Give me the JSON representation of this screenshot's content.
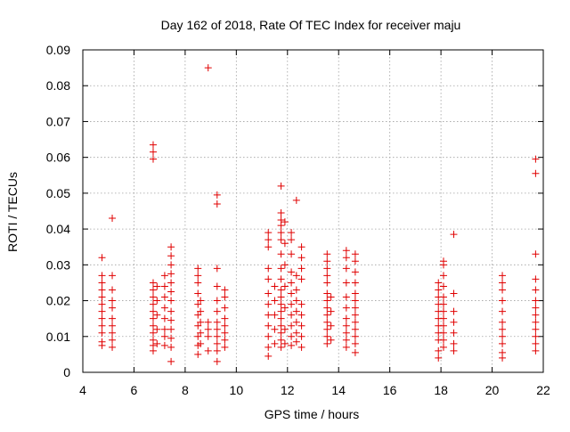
{
  "chart_data": {
    "type": "scatter",
    "title": "Day 162 of 2018, Rate Of TEC Index for receiver maju",
    "xlabel": "GPS time / hours",
    "ylabel": "ROTI / TECUs",
    "xlim": [
      4,
      22
    ],
    "ylim": [
      0,
      0.09
    ],
    "xticks": [
      4,
      6,
      8,
      10,
      12,
      14,
      16,
      18,
      20,
      22
    ],
    "xtick_labels": [
      "4",
      "6",
      "8",
      "10",
      "12",
      "14",
      "16",
      "18",
      "20",
      "22"
    ],
    "yticks": [
      0,
      0.01,
      0.02,
      0.03,
      0.04,
      0.05,
      0.06,
      0.07,
      0.08,
      0.09
    ],
    "ytick_labels": [
      "0",
      "0.01",
      "0.02",
      "0.03",
      "0.04",
      "0.05",
      "0.06",
      "0.07",
      "0.08",
      "0.09"
    ],
    "grid": true,
    "marker": "+",
    "color": "#e00000",
    "series": [
      {
        "name": "ROTI",
        "points": [
          [
            4.75,
            0.032
          ],
          [
            4.75,
            0.027
          ],
          [
            4.75,
            0.025
          ],
          [
            4.75,
            0.023
          ],
          [
            4.75,
            0.021
          ],
          [
            4.75,
            0.019
          ],
          [
            4.75,
            0.017
          ],
          [
            4.75,
            0.015
          ],
          [
            4.75,
            0.013
          ],
          [
            4.75,
            0.011
          ],
          [
            4.75,
            0.0085
          ],
          [
            4.75,
            0.0075
          ],
          [
            5.15,
            0.043
          ],
          [
            5.15,
            0.027
          ],
          [
            5.15,
            0.023
          ],
          [
            5.15,
            0.02
          ],
          [
            5.15,
            0.018
          ],
          [
            5.15,
            0.015
          ],
          [
            5.15,
            0.013
          ],
          [
            5.15,
            0.011
          ],
          [
            5.15,
            0.009
          ],
          [
            5.15,
            0.007
          ],
          [
            6.75,
            0.0635
          ],
          [
            6.75,
            0.0615
          ],
          [
            6.75,
            0.0595
          ],
          [
            6.75,
            0.025
          ],
          [
            6.75,
            0.023
          ],
          [
            6.75,
            0.021
          ],
          [
            6.75,
            0.019
          ],
          [
            6.75,
            0.017
          ],
          [
            6.75,
            0.015
          ],
          [
            6.75,
            0.013
          ],
          [
            6.75,
            0.011
          ],
          [
            6.75,
            0.009
          ],
          [
            6.75,
            0.0075
          ],
          [
            6.75,
            0.006
          ],
          [
            6.9,
            0.024
          ],
          [
            6.9,
            0.02
          ],
          [
            6.9,
            0.016
          ],
          [
            6.9,
            0.012
          ],
          [
            6.9,
            0.008
          ],
          [
            7.2,
            0.027
          ],
          [
            7.2,
            0.024
          ],
          [
            7.2,
            0.021
          ],
          [
            7.2,
            0.018
          ],
          [
            7.2,
            0.015
          ],
          [
            7.2,
            0.012
          ],
          [
            7.2,
            0.01
          ],
          [
            7.2,
            0.0075
          ],
          [
            7.45,
            0.035
          ],
          [
            7.45,
            0.0325
          ],
          [
            7.45,
            0.03
          ],
          [
            7.45,
            0.0275
          ],
          [
            7.45,
            0.025
          ],
          [
            7.45,
            0.0225
          ],
          [
            7.45,
            0.02
          ],
          [
            7.45,
            0.017
          ],
          [
            7.45,
            0.0145
          ],
          [
            7.45,
            0.012
          ],
          [
            7.45,
            0.0095
          ],
          [
            7.45,
            0.007
          ],
          [
            7.45,
            0.003
          ],
          [
            8.5,
            0.029
          ],
          [
            8.5,
            0.027
          ],
          [
            8.5,
            0.025
          ],
          [
            8.5,
            0.022
          ],
          [
            8.5,
            0.019
          ],
          [
            8.5,
            0.016
          ],
          [
            8.5,
            0.013
          ],
          [
            8.5,
            0.01
          ],
          [
            8.5,
            0.0075
          ],
          [
            8.5,
            0.005
          ],
          [
            8.6,
            0.02
          ],
          [
            8.6,
            0.017
          ],
          [
            8.6,
            0.014
          ],
          [
            8.6,
            0.011
          ],
          [
            8.6,
            0.008
          ],
          [
            8.9,
            0.085
          ],
          [
            8.9,
            0.014
          ],
          [
            8.9,
            0.012
          ],
          [
            8.9,
            0.01
          ],
          [
            8.9,
            0.006
          ],
          [
            9.25,
            0.0495
          ],
          [
            9.25,
            0.047
          ],
          [
            9.25,
            0.029
          ],
          [
            9.25,
            0.024
          ],
          [
            9.25,
            0.02
          ],
          [
            9.25,
            0.017
          ],
          [
            9.25,
            0.014
          ],
          [
            9.25,
            0.012
          ],
          [
            9.25,
            0.01
          ],
          [
            9.25,
            0.008
          ],
          [
            9.25,
            0.006
          ],
          [
            9.25,
            0.003
          ],
          [
            9.55,
            0.023
          ],
          [
            9.55,
            0.021
          ],
          [
            9.55,
            0.018
          ],
          [
            9.55,
            0.015
          ],
          [
            9.55,
            0.013
          ],
          [
            9.55,
            0.011
          ],
          [
            9.55,
            0.009
          ],
          [
            9.55,
            0.007
          ],
          [
            11.25,
            0.039
          ],
          [
            11.25,
            0.037
          ],
          [
            11.25,
            0.035
          ],
          [
            11.25,
            0.029
          ],
          [
            11.25,
            0.026
          ],
          [
            11.25,
            0.022
          ],
          [
            11.25,
            0.019
          ],
          [
            11.25,
            0.016
          ],
          [
            11.25,
            0.013
          ],
          [
            11.25,
            0.01
          ],
          [
            11.25,
            0.007
          ],
          [
            11.25,
            0.0045
          ],
          [
            11.5,
            0.024
          ],
          [
            11.5,
            0.02
          ],
          [
            11.5,
            0.016
          ],
          [
            11.5,
            0.012
          ],
          [
            11.5,
            0.008
          ],
          [
            11.75,
            0.052
          ],
          [
            11.75,
            0.0445
          ],
          [
            11.75,
            0.0425
          ],
          [
            11.75,
            0.041
          ],
          [
            11.75,
            0.039
          ],
          [
            11.75,
            0.037
          ],
          [
            11.75,
            0.033
          ],
          [
            11.75,
            0.029
          ],
          [
            11.75,
            0.026
          ],
          [
            11.75,
            0.023
          ],
          [
            11.75,
            0.021
          ],
          [
            11.75,
            0.019
          ],
          [
            11.75,
            0.017
          ],
          [
            11.75,
            0.015
          ],
          [
            11.75,
            0.013
          ],
          [
            11.75,
            0.011
          ],
          [
            11.75,
            0.009
          ],
          [
            11.75,
            0.007
          ],
          [
            11.9,
            0.042
          ],
          [
            11.9,
            0.036
          ],
          [
            11.9,
            0.03
          ],
          [
            11.9,
            0.024
          ],
          [
            11.9,
            0.018
          ],
          [
            11.9,
            0.012
          ],
          [
            11.9,
            0.008
          ],
          [
            12.15,
            0.039
          ],
          [
            12.15,
            0.037
          ],
          [
            12.15,
            0.033
          ],
          [
            12.15,
            0.028
          ],
          [
            12.15,
            0.025
          ],
          [
            12.15,
            0.022
          ],
          [
            12.15,
            0.019
          ],
          [
            12.15,
            0.016
          ],
          [
            12.15,
            0.013
          ],
          [
            12.15,
            0.01
          ],
          [
            12.15,
            0.0075
          ],
          [
            12.35,
            0.048
          ],
          [
            12.35,
            0.027
          ],
          [
            12.35,
            0.023
          ],
          [
            12.35,
            0.02
          ],
          [
            12.35,
            0.017
          ],
          [
            12.35,
            0.014
          ],
          [
            12.35,
            0.011
          ],
          [
            12.35,
            0.0085
          ],
          [
            12.55,
            0.035
          ],
          [
            12.55,
            0.032
          ],
          [
            12.55,
            0.029
          ],
          [
            12.55,
            0.026
          ],
          [
            12.55,
            0.019
          ],
          [
            12.55,
            0.016
          ],
          [
            12.55,
            0.013
          ],
          [
            12.55,
            0.01
          ],
          [
            12.55,
            0.007
          ],
          [
            13.55,
            0.033
          ],
          [
            13.55,
            0.031
          ],
          [
            13.55,
            0.029
          ],
          [
            13.55,
            0.027
          ],
          [
            13.55,
            0.025
          ],
          [
            13.55,
            0.022
          ],
          [
            13.55,
            0.02
          ],
          [
            13.55,
            0.018
          ],
          [
            13.55,
            0.016
          ],
          [
            13.55,
            0.014
          ],
          [
            13.55,
            0.012
          ],
          [
            13.55,
            0.01
          ],
          [
            13.55,
            0.008
          ],
          [
            13.7,
            0.021
          ],
          [
            13.7,
            0.017
          ],
          [
            13.7,
            0.013
          ],
          [
            13.7,
            0.009
          ],
          [
            14.3,
            0.034
          ],
          [
            14.3,
            0.032
          ],
          [
            14.3,
            0.029
          ],
          [
            14.3,
            0.025
          ],
          [
            14.3,
            0.021
          ],
          [
            14.3,
            0.018
          ],
          [
            14.3,
            0.015
          ],
          [
            14.3,
            0.013
          ],
          [
            14.3,
            0.011
          ],
          [
            14.3,
            0.009
          ],
          [
            14.3,
            0.007
          ],
          [
            14.65,
            0.033
          ],
          [
            14.65,
            0.031
          ],
          [
            14.65,
            0.028
          ],
          [
            14.65,
            0.025
          ],
          [
            14.65,
            0.022
          ],
          [
            14.65,
            0.02
          ],
          [
            14.65,
            0.018
          ],
          [
            14.65,
            0.016
          ],
          [
            14.65,
            0.014
          ],
          [
            14.65,
            0.012
          ],
          [
            14.65,
            0.01
          ],
          [
            14.65,
            0.008
          ],
          [
            14.65,
            0.0055
          ],
          [
            17.9,
            0.025
          ],
          [
            17.9,
            0.023
          ],
          [
            17.9,
            0.021
          ],
          [
            17.9,
            0.019
          ],
          [
            17.9,
            0.017
          ],
          [
            17.9,
            0.015
          ],
          [
            17.9,
            0.013
          ],
          [
            17.9,
            0.011
          ],
          [
            17.9,
            0.009
          ],
          [
            17.9,
            0.006
          ],
          [
            17.9,
            0.004
          ],
          [
            18.1,
            0.031
          ],
          [
            18.1,
            0.03
          ],
          [
            18.1,
            0.027
          ],
          [
            18.1,
            0.024
          ],
          [
            18.1,
            0.021
          ],
          [
            18.1,
            0.019
          ],
          [
            18.1,
            0.017
          ],
          [
            18.1,
            0.015
          ],
          [
            18.1,
            0.013
          ],
          [
            18.1,
            0.011
          ],
          [
            18.1,
            0.009
          ],
          [
            18.1,
            0.007
          ],
          [
            18.5,
            0.0385
          ],
          [
            18.5,
            0.022
          ],
          [
            18.5,
            0.017
          ],
          [
            18.5,
            0.014
          ],
          [
            18.5,
            0.011
          ],
          [
            18.5,
            0.008
          ],
          [
            18.5,
            0.006
          ],
          [
            20.4,
            0.027
          ],
          [
            20.4,
            0.025
          ],
          [
            20.4,
            0.023
          ],
          [
            20.4,
            0.02
          ],
          [
            20.4,
            0.017
          ],
          [
            20.4,
            0.014
          ],
          [
            20.4,
            0.012
          ],
          [
            20.4,
            0.01
          ],
          [
            20.4,
            0.008
          ],
          [
            20.4,
            0.0055
          ],
          [
            20.4,
            0.004
          ],
          [
            21.7,
            0.0595
          ],
          [
            21.7,
            0.0555
          ],
          [
            21.7,
            0.033
          ],
          [
            21.7,
            0.026
          ],
          [
            21.7,
            0.023
          ],
          [
            21.7,
            0.02
          ],
          [
            21.7,
            0.018
          ],
          [
            21.7,
            0.016
          ],
          [
            21.7,
            0.014
          ],
          [
            21.7,
            0.012
          ],
          [
            21.7,
            0.01
          ],
          [
            21.7,
            0.008
          ],
          [
            21.7,
            0.006
          ]
        ]
      }
    ]
  }
}
